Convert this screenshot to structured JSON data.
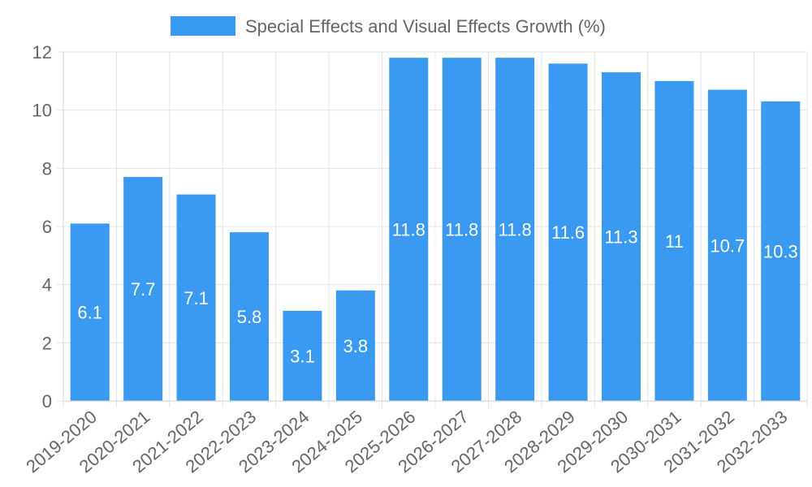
{
  "chart_data": {
    "type": "bar",
    "categories": [
      "2019-2020",
      "2020-2021",
      "2021-2022",
      "2022-2023",
      "2023-2024",
      "2024-2025",
      "2025-2026",
      "2026-2027",
      "2027-2028",
      "2028-2029",
      "2029-2030",
      "2030-2031",
      "2031-2032",
      "2032-2033"
    ],
    "series": [
      {
        "name": "Special Effects and Visual Effects Growth (%)",
        "values": [
          6.1,
          7.7,
          7.1,
          5.8,
          3.1,
          3.8,
          11.8,
          11.8,
          11.8,
          11.6,
          11.3,
          11,
          10.7,
          10.3
        ],
        "color": "#3a99f0"
      }
    ],
    "data_labels": [
      "6.1",
      "7.7",
      "7.1",
      "5.8",
      "3.1",
      "3.8",
      "11.8",
      "11.8",
      "11.8",
      "11.6",
      "11.3",
      "11",
      "10.7",
      "10.3"
    ],
    "y_ticks": [
      "0",
      "2",
      "4",
      "6",
      "8",
      "10",
      "12"
    ],
    "ylim": [
      0,
      12
    ],
    "grid": true,
    "legend_position": "top"
  }
}
